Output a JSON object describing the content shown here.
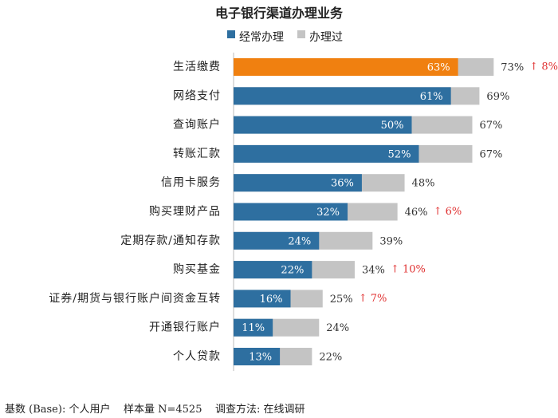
{
  "chart_data": {
    "type": "bar",
    "orientation": "horizontal",
    "title": "电子银行渠道办理业务",
    "categories": [
      "生活缴费",
      "网络支付",
      "查询账户",
      "转账汇款",
      "信用卡服务",
      "购买理财产品",
      "定期存款/通知存款",
      "购买基金",
      "证券/期货与银行账户间资金互转",
      "开通银行账户",
      "个人贷款"
    ],
    "series": [
      {
        "name": "经常办理",
        "values": [
          63,
          61,
          50,
          52,
          36,
          32,
          24,
          22,
          16,
          11,
          13
        ],
        "labels": [
          "63%",
          "61%",
          "50%",
          "52%",
          "36%",
          "32%",
          "24%",
          "22%",
          "16%",
          "11%",
          "13%"
        ]
      },
      {
        "name": "办理过",
        "values": [
          73,
          69,
          67,
          67,
          48,
          46,
          39,
          34,
          25,
          24,
          22
        ],
        "labels": [
          "73%",
          "69%",
          "67%",
          "67%",
          "48%",
          "46%",
          "39%",
          "34%",
          "25%",
          "24%",
          "22%"
        ]
      }
    ],
    "annotations": [
      "↑ 8%",
      "",
      "",
      "",
      "",
      "↑ 6%",
      "",
      "↑ 10%",
      "↑ 7%",
      "",
      ""
    ],
    "highlight_index": 0,
    "colors": {
      "frequent": "#2e6fa0",
      "highlight": "#f08010",
      "done": "#c4c4c4",
      "annotation": "#e03030"
    },
    "legend_position": "top",
    "grid": false,
    "xlim": [
      0,
      100
    ]
  },
  "footer": "基数 (Base): 个人用户    样本量 N=4525    调查方法: 在线调研"
}
